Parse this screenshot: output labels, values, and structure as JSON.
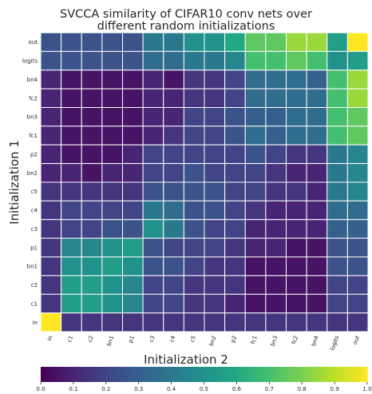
{
  "chart_data": {
    "type": "heatmap",
    "title_line1": "SVCCA similarity of CIFAR10 conv nets over",
    "title_line2": "different random initializations",
    "xlabel": "Initialization 2",
    "ylabel": "Initialization 1",
    "x_categories": [
      "in",
      "c1",
      "c2",
      "bn1",
      "p1",
      "c3",
      "c4",
      "c5",
      "bn2",
      "p2",
      "fc1",
      "bn3",
      "fc2",
      "bn4",
      "logits",
      "out"
    ],
    "y_categories": [
      "out",
      "logits",
      "bn4",
      "fc2",
      "bn3",
      "fc1",
      "p2",
      "bn2",
      "c5",
      "c4",
      "c3",
      "p1",
      "bn1",
      "c2",
      "c1",
      "in"
    ],
    "values": [
      [
        0.25,
        0.25,
        0.25,
        0.25,
        0.25,
        0.4,
        0.4,
        0.5,
        0.5,
        0.6,
        0.75,
        0.75,
        0.85,
        0.85,
        0.55,
        1.0
      ],
      [
        0.25,
        0.25,
        0.25,
        0.25,
        0.25,
        0.35,
        0.35,
        0.4,
        0.4,
        0.45,
        0.7,
        0.7,
        0.75,
        0.7,
        0.5,
        0.55
      ],
      [
        0.1,
        0.05,
        0.05,
        0.05,
        0.05,
        0.1,
        0.05,
        0.15,
        0.15,
        0.2,
        0.35,
        0.35,
        0.35,
        0.3,
        0.7,
        0.85
      ],
      [
        0.1,
        0.05,
        0.05,
        0.05,
        0.05,
        0.1,
        0.1,
        0.15,
        0.15,
        0.2,
        0.35,
        0.35,
        0.35,
        0.35,
        0.7,
        0.85
      ],
      [
        0.1,
        0.05,
        0.05,
        0.05,
        0.05,
        0.1,
        0.1,
        0.2,
        0.2,
        0.25,
        0.3,
        0.3,
        0.35,
        0.35,
        0.7,
        0.75
      ],
      [
        0.1,
        0.05,
        0.05,
        0.05,
        0.05,
        0.1,
        0.15,
        0.2,
        0.2,
        0.25,
        0.35,
        0.3,
        0.35,
        0.35,
        0.7,
        0.75
      ],
      [
        0.1,
        0.05,
        0.05,
        0.05,
        0.1,
        0.2,
        0.2,
        0.2,
        0.2,
        0.2,
        0.25,
        0.2,
        0.15,
        0.15,
        0.4,
        0.45
      ],
      [
        0.1,
        0.1,
        0.05,
        0.1,
        0.1,
        0.2,
        0.2,
        0.25,
        0.2,
        0.2,
        0.2,
        0.15,
        0.1,
        0.1,
        0.4,
        0.45
      ],
      [
        0.15,
        0.15,
        0.15,
        0.15,
        0.15,
        0.25,
        0.25,
        0.25,
        0.25,
        0.2,
        0.2,
        0.15,
        0.15,
        0.1,
        0.4,
        0.45
      ],
      [
        0.15,
        0.2,
        0.2,
        0.2,
        0.2,
        0.4,
        0.35,
        0.25,
        0.25,
        0.2,
        0.15,
        0.1,
        0.1,
        0.1,
        0.35,
        0.35
      ],
      [
        0.15,
        0.2,
        0.2,
        0.25,
        0.25,
        0.5,
        0.4,
        0.25,
        0.2,
        0.2,
        0.1,
        0.1,
        0.1,
        0.1,
        0.3,
        0.3
      ],
      [
        0.15,
        0.45,
        0.45,
        0.5,
        0.55,
        0.25,
        0.2,
        0.2,
        0.2,
        0.15,
        0.1,
        0.1,
        0.05,
        0.05,
        0.25,
        0.25
      ],
      [
        0.15,
        0.5,
        0.5,
        0.55,
        0.5,
        0.25,
        0.25,
        0.2,
        0.15,
        0.15,
        0.05,
        0.05,
        0.05,
        0.05,
        0.25,
        0.25
      ],
      [
        0.15,
        0.55,
        0.55,
        0.5,
        0.45,
        0.2,
        0.2,
        0.15,
        0.15,
        0.15,
        0.05,
        0.05,
        0.05,
        0.05,
        0.2,
        0.2
      ],
      [
        0.15,
        0.55,
        0.55,
        0.5,
        0.45,
        0.2,
        0.2,
        0.15,
        0.15,
        0.1,
        0.05,
        0.05,
        0.05,
        0.05,
        0.2,
        0.2
      ],
      [
        1.0,
        0.15,
        0.15,
        0.15,
        0.15,
        0.15,
        0.15,
        0.15,
        0.15,
        0.15,
        0.15,
        0.15,
        0.15,
        0.15,
        0.15,
        0.15
      ]
    ],
    "colorbar": {
      "colormap": "viridis",
      "range": [
        0.0,
        1.0
      ],
      "ticks": [
        "0.0",
        "0.1",
        "0.2",
        "0.3",
        "0.4",
        "0.5",
        "0.6",
        "0.7",
        "0.8",
        "0.9",
        "1.0"
      ]
    },
    "grid": true,
    "legend": "colorbar-bottom"
  }
}
